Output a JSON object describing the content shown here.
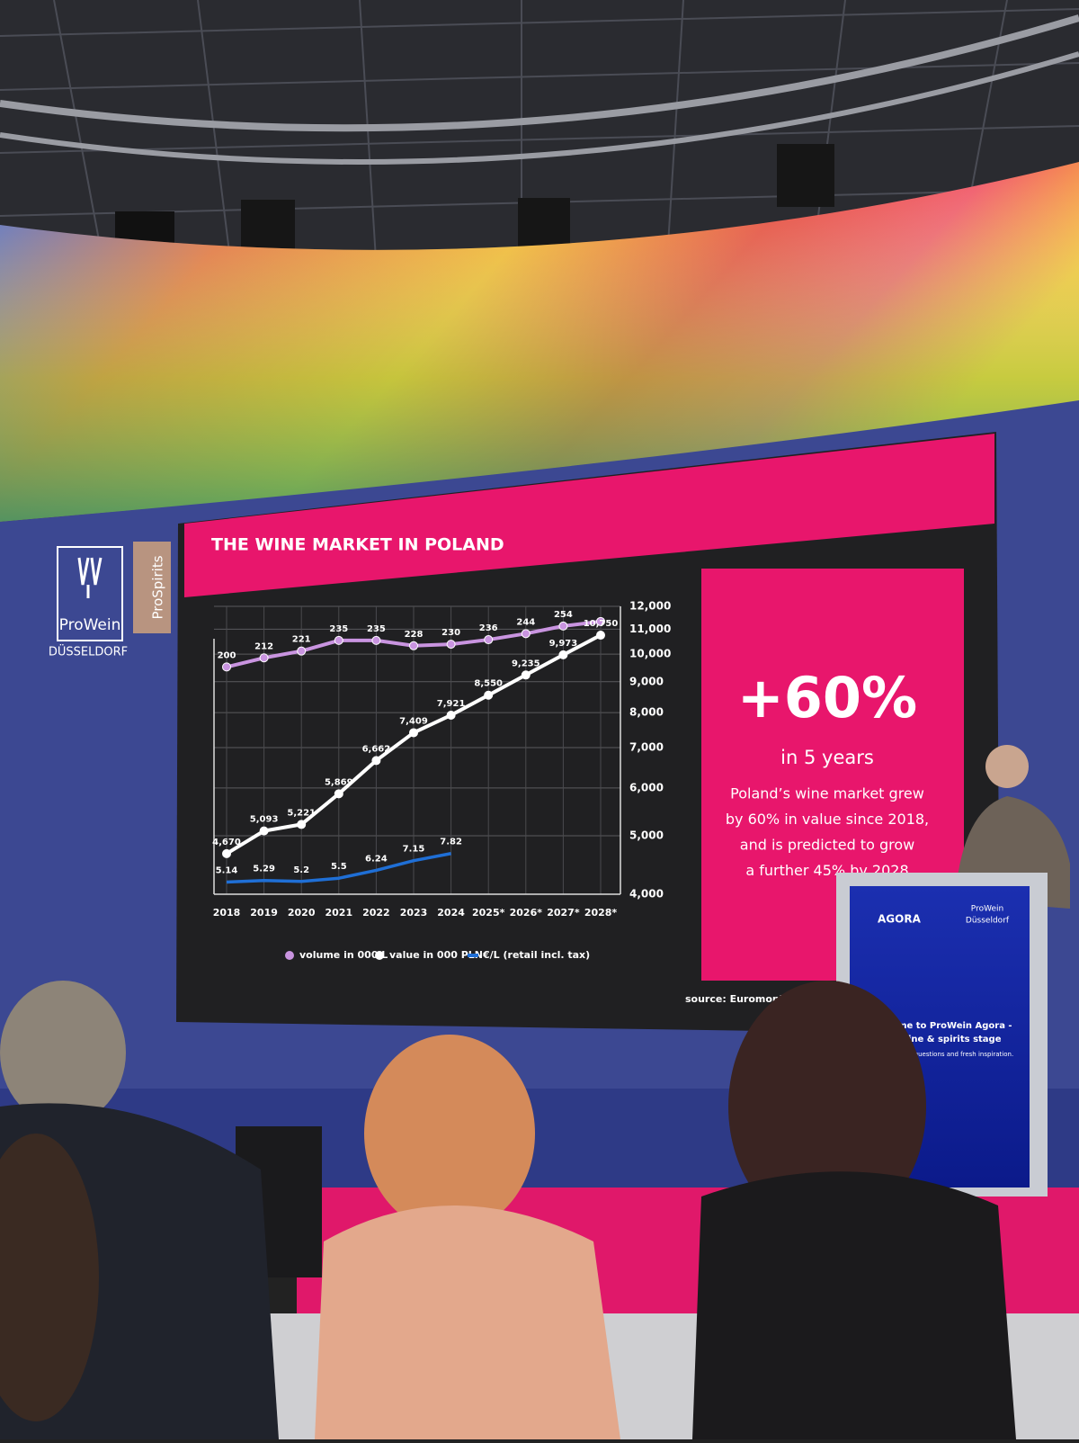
{
  "chart_data": {
    "type": "line",
    "title": "THE WINE MARKET IN POLAND",
    "categories": [
      "2018",
      "2019",
      "2020",
      "2021",
      "2022",
      "2023",
      "2024",
      "2025*",
      "2026*",
      "2027*",
      "2028*"
    ],
    "series": [
      {
        "name": "volume in 000 L",
        "color": "#c994e0",
        "axis": "y2",
        "values": [
          200,
          212,
          221,
          235,
          235,
          228,
          230,
          236,
          244,
          254,
          260
        ],
        "value_labels": [
          "200",
          "212",
          "221",
          "235",
          "235",
          "228",
          "230",
          "236",
          "244",
          "254",
          null
        ]
      },
      {
        "name": "value in 000 PLN",
        "color": "#ffffff",
        "values": [
          4670,
          5093,
          5221,
          5869,
          6662,
          7409,
          7921,
          8550,
          9235,
          9973,
          10750
        ],
        "value_labels": [
          "4,670",
          "5,093",
          "5,221",
          "5,869",
          "6,662",
          "7,409",
          "7,921",
          "8,550",
          "9,235",
          "9,973",
          "10,750"
        ]
      },
      {
        "name": "€/L (retail incl. tax)",
        "color": "#1f6fd6",
        "axis": "y3",
        "values": [
          5.14,
          5.29,
          5.2,
          5.5,
          6.24,
          7.15,
          7.82,
          null,
          null,
          null,
          null
        ]
      }
    ],
    "ylim": [
      4000,
      12000
    ],
    "yticks": [
      {
        "value": 4000,
        "label": "4,000"
      },
      {
        "value": 5000,
        "label": "5,000"
      },
      {
        "value": 6000,
        "label": "6,000"
      },
      {
        "value": 7000,
        "label": "7,000"
      },
      {
        "value": 8000,
        "label": "8,000"
      },
      {
        "value": 9000,
        "label": "9,000"
      },
      {
        "value": 10000,
        "label": "10,000"
      },
      {
        "value": 11000,
        "label": "11,000"
      },
      {
        "value": 12000,
        "label": "12,000"
      }
    ],
    "log_scale": true,
    "y2lim": [
      -100,
      280
    ],
    "y3lim": [
      4,
      31
    ],
    "grid": true,
    "source": "source: Euromoni"
  },
  "callout": {
    "headline": "+60%",
    "subhead": "in 5 years",
    "text": [
      "Poland’s wine market grew",
      "by 60% in value since 2018,",
      "and is predicted to grow",
      "a further 45% by 2028"
    ]
  },
  "branding": {
    "logo": "ProWein",
    "city": "DÜSSELDORF",
    "partner": "ProSpirits"
  },
  "podium": {
    "brand": "AGORA",
    "logo": "ProWein",
    "city": "Düsseldorf",
    "welcome": [
      "Welcome to ProWein Agora -",
      "The wine & spirits stage"
    ],
    "tagline": "Big ideas, bold questions  and fresh inspiration."
  }
}
